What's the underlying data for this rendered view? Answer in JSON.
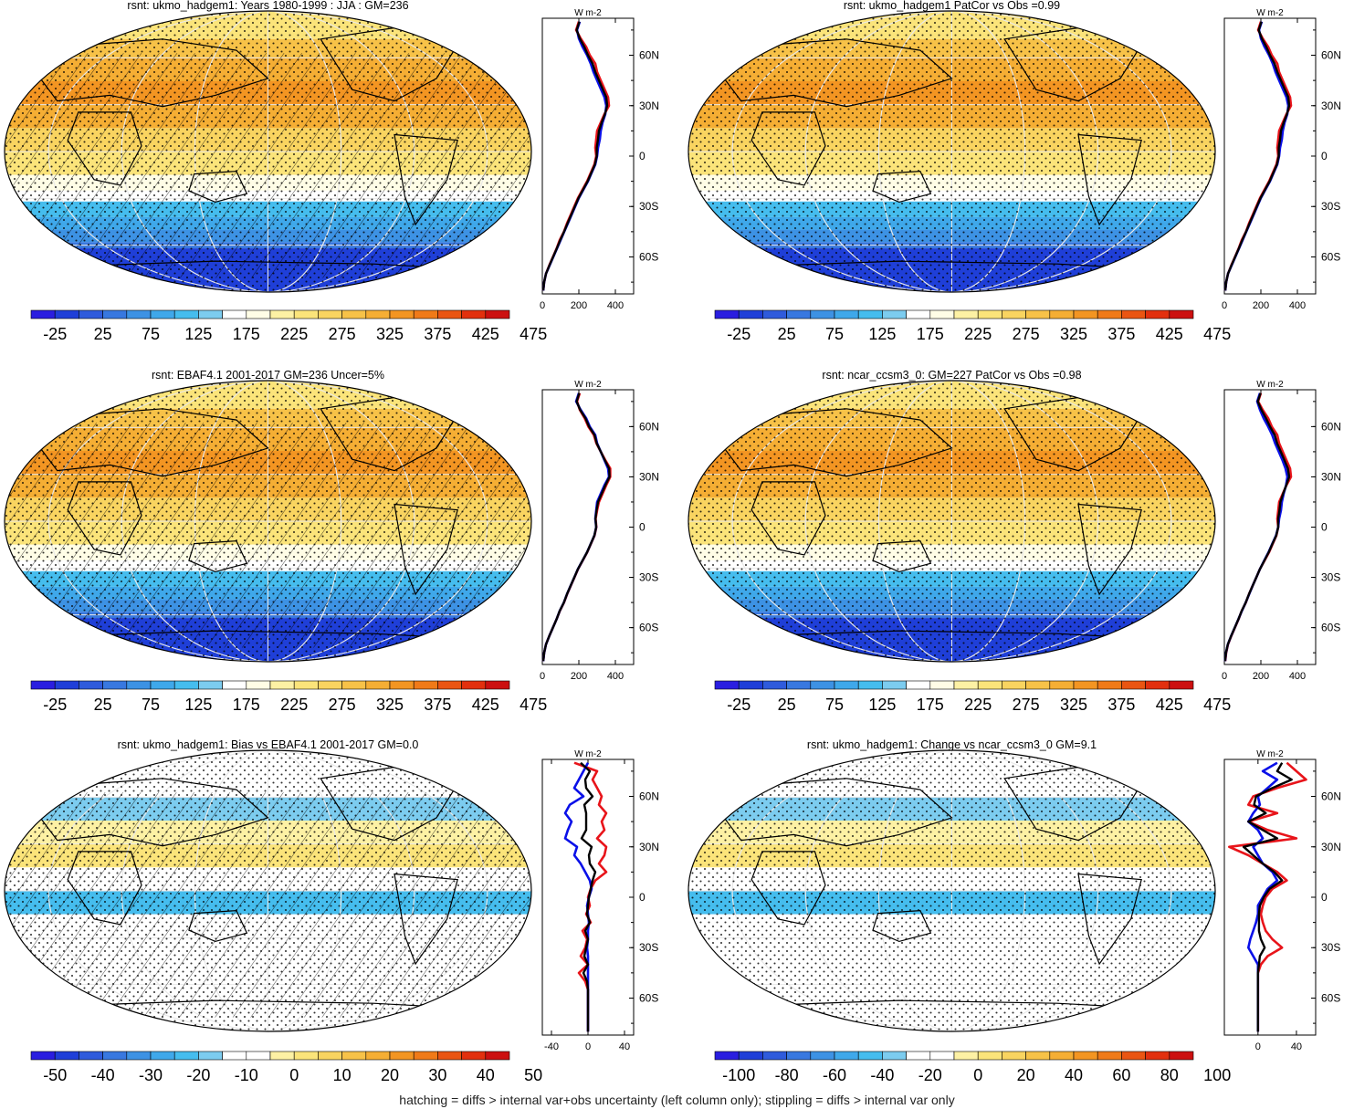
{
  "colors": {
    "abs": [
      "#2a1ee0",
      "#1f3fd8",
      "#2f5bdc",
      "#3878e0",
      "#3d92e4",
      "#3fa8ea",
      "#45bdee",
      "#7cccef",
      "#ffffff",
      "#fffde6",
      "#fdf1a4",
      "#fbe47a",
      "#f9d460",
      "#f7c248",
      "#f5ae34",
      "#f39522",
      "#f07a18",
      "#ea5512",
      "#e2300e",
      "#cc1010"
    ],
    "diff": [
      "#2a1ee0",
      "#1f3fd8",
      "#2f5bdc",
      "#3878e0",
      "#3d92e4",
      "#3fa8ea",
      "#45bdee",
      "#7cccef",
      "#ffffff",
      "#ffffff",
      "#fdf1a4",
      "#fbe47a",
      "#f9d460",
      "#f7c248",
      "#f5ae34",
      "#f39522",
      "#f07a18",
      "#ea5512",
      "#e2300e",
      "#cc1010"
    ],
    "land": "#000000",
    "zonal_model": "#0a10e8",
    "zonal_obs": "#e8141a",
    "zonal_mean": "#000000"
  },
  "zonal_units": "W m-2",
  "lat_ticks": [
    "60N",
    "30N",
    "0",
    "30S",
    "60S"
  ],
  "footer": "hatching = diffs > internal var+obs uncertainty (left column only); stippling = diffs > internal var only",
  "panels": [
    {
      "title": "rsnt: ukmo_hadgem1: Years 1980-1999 : JJA : GM=236",
      "colorbar_labels": [
        "-25",
        "25",
        "75",
        "125",
        "175",
        "225",
        "275",
        "325",
        "375",
        "425",
        "475"
      ],
      "zonal_xticks": [
        "0",
        "200",
        "400"
      ],
      "hatched": true,
      "chart_data": {
        "type": "line",
        "xlim": [
          0,
          500
        ],
        "lat": [
          80,
          75,
          70,
          65,
          60,
          55,
          50,
          45,
          40,
          35,
          30,
          25,
          20,
          15,
          10,
          5,
          0,
          -5,
          -10,
          -15,
          -20,
          -25,
          -30,
          -35,
          -40,
          -45,
          -50,
          -55,
          -60,
          -65,
          -70,
          -75,
          -80
        ],
        "series": [
          {
            "values": [
              205,
              190,
              200,
              220,
              245,
              265,
              280,
              300,
              320,
              340,
              350,
              345,
              330,
              320,
              315,
              305,
              300,
              290,
              270,
              250,
              225,
              200,
              180,
              160,
              140,
              120,
              100,
              80,
              60,
              40,
              20,
              10,
              5
            ]
          },
          {
            "values": [
              200,
              185,
              210,
              240,
              260,
              290,
              300,
              320,
              340,
              360,
              365,
              340,
              320,
              300,
              295,
              290,
              295,
              285,
              265,
              245,
              220,
              195,
              175,
              155,
              135,
              118,
              95,
              78,
              58,
              38,
              20,
              10,
              5
            ]
          },
          {
            "values": [
              203,
              188,
              205,
              230,
              250,
              275,
              290,
              310,
              330,
              350,
              355,
              343,
              325,
              310,
              305,
              298,
              298,
              288,
              268,
              248,
              223,
              198,
              178,
              158,
              138,
              119,
              98,
              79,
              59,
              39,
              20,
              10,
              5
            ]
          }
        ]
      }
    },
    {
      "title": "rsnt: ukmo_hadgem1 PatCor vs Obs =0.99",
      "colorbar_labels": [
        "-25",
        "25",
        "75",
        "125",
        "175",
        "225",
        "275",
        "325",
        "375",
        "425",
        "475"
      ],
      "zonal_xticks": [
        "0",
        "200",
        "400"
      ],
      "hatched": false,
      "chart_data": {
        "type": "line",
        "xlim": [
          0,
          500
        ],
        "lat": [
          80,
          75,
          70,
          65,
          60,
          55,
          50,
          45,
          40,
          35,
          30,
          25,
          20,
          15,
          10,
          5,
          0,
          -5,
          -10,
          -15,
          -20,
          -25,
          -30,
          -35,
          -40,
          -45,
          -50,
          -55,
          -60,
          -65,
          -70,
          -75,
          -80
        ],
        "series": [
          {
            "values": [
              205,
              190,
              200,
              220,
              245,
              265,
              280,
              300,
              320,
              340,
              350,
              345,
              330,
              320,
              315,
              305,
              300,
              290,
              270,
              250,
              225,
              200,
              180,
              160,
              140,
              120,
              100,
              80,
              60,
              40,
              20,
              10,
              5
            ]
          },
          {
            "values": [
              200,
              185,
              210,
              240,
              260,
              290,
              300,
              320,
              340,
              360,
              365,
              340,
              320,
              300,
              295,
              290,
              295,
              285,
              265,
              245,
              220,
              195,
              175,
              155,
              135,
              118,
              95,
              78,
              58,
              38,
              20,
              10,
              5
            ]
          },
          {
            "values": [
              203,
              188,
              205,
              230,
              250,
              275,
              290,
              310,
              330,
              350,
              355,
              343,
              325,
              310,
              305,
              298,
              298,
              288,
              268,
              248,
              223,
              198,
              178,
              158,
              138,
              119,
              98,
              79,
              59,
              39,
              20,
              10,
              5
            ]
          }
        ]
      }
    },
    {
      "title": "rsnt: EBAF4.1 2001-2017 GM=236 Uncer=5%",
      "colorbar_labels": [
        "-25",
        "25",
        "75",
        "125",
        "175",
        "225",
        "275",
        "325",
        "375",
        "425",
        "475"
      ],
      "zonal_xticks": [
        "0",
        "200",
        "400"
      ],
      "hatched": true,
      "chart_data": {
        "type": "line",
        "xlim": [
          0,
          500
        ],
        "lat": [
          80,
          75,
          70,
          65,
          60,
          55,
          50,
          45,
          40,
          35,
          30,
          25,
          20,
          15,
          10,
          5,
          0,
          -5,
          -10,
          -15,
          -20,
          -25,
          -30,
          -35,
          -40,
          -45,
          -50,
          -55,
          -60,
          -65,
          -70,
          -75,
          -80
        ],
        "series": [
          {
            "values": [
              200,
              185,
              210,
              240,
              260,
              290,
              300,
              320,
              340,
              360,
              365,
              340,
              320,
              300,
              295,
              290,
              295,
              285,
              265,
              245,
              220,
              195,
              175,
              155,
              135,
              118,
              95,
              78,
              58,
              38,
              20,
              10,
              5
            ]
          },
          {
            "values": [
              205,
              190,
              205,
              232,
              252,
              282,
              296,
              320,
              345,
              372,
              372,
              350,
              330,
              310,
              300,
              292,
              296,
              286,
              266,
              246,
              221,
              196,
              176,
              156,
              136,
              119,
              96,
              78,
              58,
              38,
              20,
              10,
              5
            ]
          },
          {
            "values": [
              202,
              188,
              207,
              236,
              256,
              286,
              298,
              320,
              342,
              366,
              368,
              345,
              325,
              305,
              297,
              291,
              295,
              285,
              265,
              245,
              220,
              195,
              175,
              155,
              135,
              118,
              95,
              78,
              58,
              38,
              20,
              10,
              5
            ]
          }
        ]
      }
    },
    {
      "title": "rsnt: ncar_ccsm3_0: GM=227 PatCor vs Obs =0.98",
      "colorbar_labels": [
        "-25",
        "25",
        "75",
        "125",
        "175",
        "225",
        "275",
        "325",
        "375",
        "425",
        "475"
      ],
      "zonal_xticks": [
        "0",
        "200",
        "400"
      ],
      "hatched": false,
      "chart_data": {
        "type": "line",
        "xlim": [
          0,
          500
        ],
        "lat": [
          80,
          75,
          70,
          65,
          60,
          55,
          50,
          45,
          40,
          35,
          30,
          25,
          20,
          15,
          10,
          5,
          0,
          -5,
          -10,
          -15,
          -20,
          -25,
          -30,
          -35,
          -40,
          -45,
          -50,
          -55,
          -60,
          -65,
          -70,
          -75,
          -80
        ],
        "series": [
          {
            "values": [
              195,
              180,
              195,
              215,
              240,
              262,
              278,
              298,
              318,
              335,
              345,
              338,
              325,
              315,
              310,
              300,
              295,
              283,
              262,
              242,
              218,
              195,
              175,
              155,
              136,
              117,
              96,
              77,
              57,
              37,
              19,
              9,
              4
            ]
          },
          {
            "values": [
              200,
              185,
              210,
              240,
              260,
              290,
              300,
              320,
              340,
              360,
              365,
              340,
              320,
              300,
              295,
              290,
              295,
              285,
              265,
              245,
              220,
              195,
              175,
              155,
              135,
              118,
              95,
              78,
              58,
              38,
              20,
              10,
              5
            ]
          },
          {
            "values": [
              198,
              183,
              203,
              228,
              250,
              276,
              289,
              309,
              329,
              348,
              355,
              339,
              322,
              307,
              302,
              295,
              295,
              284,
              263,
              243,
              219,
              195,
              175,
              155,
              135,
              117,
              95,
              77,
              57,
              37,
              19,
              9,
              4
            ]
          }
        ]
      }
    },
    {
      "title": "rsnt: ukmo_hadgem1: Bias vs EBAF4.1 2001-2017 GM=0.0",
      "colorbar_labels": [
        "-50",
        "-40",
        "-30",
        "-20",
        "-10",
        "0",
        "10",
        "20",
        "30",
        "40",
        "50"
      ],
      "zonal_xticks": [
        "-40",
        "0",
        "40"
      ],
      "hatched": true,
      "chart_data": {
        "type": "line",
        "xlim": [
          -50,
          50
        ],
        "lat": [
          80,
          75,
          70,
          65,
          60,
          55,
          50,
          45,
          40,
          35,
          30,
          25,
          20,
          15,
          10,
          5,
          0,
          -5,
          -10,
          -15,
          -20,
          -25,
          -30,
          -35,
          -40,
          -45,
          -50,
          -55,
          -60,
          -65,
          -70,
          -75,
          -80
        ],
        "series": [
          {
            "values": [
              0,
              -5,
              -10,
              -15,
              -5,
              -20,
              -25,
              -18,
              -22,
              -25,
              -12,
              -15,
              -8,
              -3,
              2,
              4,
              1,
              -1,
              0,
              1,
              0,
              0,
              -1,
              0,
              0,
              0,
              0,
              0,
              0,
              0,
              0,
              0,
              0
            ]
          },
          {
            "values": [
              -15,
              10,
              5,
              10,
              15,
              12,
              20,
              15,
              18,
              10,
              20,
              18,
              12,
              20,
              8,
              3,
              0,
              2,
              -2,
              3,
              -6,
              -1,
              -3,
              -8,
              0,
              -10,
              -3,
              0,
              0,
              0,
              0,
              0,
              0
            ]
          },
          {
            "values": [
              -8,
              2,
              -3,
              -2,
              5,
              -4,
              -2,
              -2,
              -2,
              -7,
              4,
              1,
              2,
              8,
              5,
              3,
              1,
              0,
              -1,
              2,
              -3,
              0,
              -2,
              -4,
              0,
              -5,
              -1,
              0,
              0,
              0,
              0,
              0,
              0
            ]
          }
        ]
      }
    },
    {
      "title": "rsnt: ukmo_hadgem1: Change vs ncar_ccsm3_0 GM=9.1",
      "colorbar_labels": [
        "-100",
        "-80",
        "-60",
        "-40",
        "-20",
        "0",
        "20",
        "40",
        "60",
        "80",
        "100"
      ],
      "zonal_xticks": [
        "0",
        "40"
      ],
      "hatched": false,
      "chart_data": {
        "type": "line",
        "xlim": [
          -35,
          60
        ],
        "lat": [
          80,
          75,
          70,
          65,
          60,
          55,
          50,
          45,
          40,
          35,
          30,
          25,
          20,
          15,
          10,
          5,
          0,
          -5,
          -10,
          -15,
          -20,
          -25,
          -30,
          -35,
          -40,
          -45,
          -50,
          -55,
          -60,
          -65,
          -70,
          -75,
          -80
        ],
        "series": [
          {
            "values": [
              20,
              5,
              20,
              10,
              0,
              2,
              -5,
              -10,
              0,
              5,
              -5,
              0,
              5,
              15,
              20,
              10,
              5,
              0,
              0,
              -2,
              -5,
              -8,
              -10,
              -5,
              0,
              0,
              0,
              0,
              0,
              0,
              0,
              0,
              0
            ]
          },
          {
            "values": [
              30,
              40,
              50,
              20,
              -5,
              -10,
              20,
              -10,
              10,
              40,
              -30,
              -10,
              5,
              20,
              30,
              15,
              8,
              5,
              3,
              5,
              8,
              15,
              25,
              10,
              3,
              0,
              0,
              0,
              0,
              0,
              0,
              0,
              0
            ]
          },
          {
            "values": [
              25,
              20,
              35,
              15,
              -2,
              -4,
              8,
              -10,
              5,
              20,
              -15,
              -5,
              5,
              17,
              25,
              12,
              6,
              2,
              1,
              1,
              1,
              3,
              7,
              2,
              1,
              0,
              0,
              0,
              0,
              0,
              0,
              0,
              0
            ]
          }
        ]
      }
    }
  ]
}
